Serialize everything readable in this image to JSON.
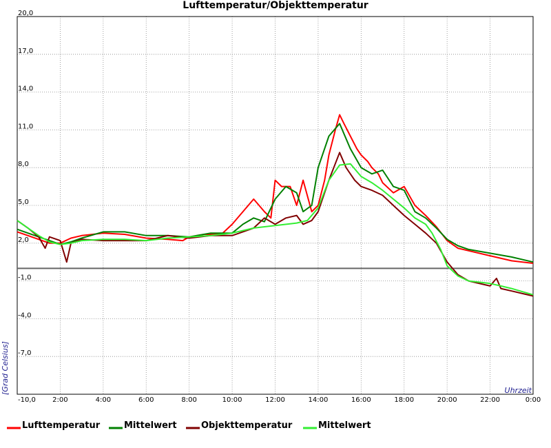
{
  "chart_data": {
    "type": "line",
    "title": "Lufttemperatur/Objekttemperatur",
    "xlabel": "Uhrzeit",
    "ylabel": "[Grad Celsius]",
    "ylim": [
      -10,
      20
    ],
    "xlim": [
      0,
      24
    ],
    "grid": true,
    "legend_position": "bottom",
    "y_ticks": [
      "-10,0",
      "-7,0",
      "-4,0",
      "-1,0",
      "2,0",
      "5,0",
      "8,0",
      "11,0",
      "14,0",
      "17,0",
      "20,0"
    ],
    "x_ticks": [
      "2:00",
      "4:00",
      "6:00",
      "8:00",
      "10:00",
      "12:00",
      "14:00",
      "16:00",
      "18:00",
      "20:00",
      "22:00",
      "0:00"
    ],
    "series": [
      {
        "name": "Lufttemperatur",
        "color": "#ff0000",
        "x": [
          0,
          0.5,
          1.0,
          1.5,
          2.0,
          2.5,
          3.0,
          4.0,
          5.0,
          6.0,
          7.0,
          7.7,
          8.0,
          8.7,
          9.5,
          10.0,
          10.5,
          11.0,
          11.5,
          11.8,
          12.0,
          12.3,
          12.7,
          13.0,
          13.3,
          13.7,
          14.0,
          14.3,
          14.5,
          14.8,
          15.0,
          15.2,
          15.5,
          15.8,
          16.0,
          16.3,
          16.5,
          16.8,
          17.0,
          17.5,
          18.0,
          18.5,
          19.0,
          19.5,
          20.0,
          20.5,
          21.0,
          22.0,
          23.0,
          24.0
        ],
        "y": [
          2.9,
          2.6,
          2.3,
          2.0,
          2.0,
          2.4,
          2.6,
          2.8,
          2.7,
          2.4,
          2.3,
          2.2,
          2.5,
          2.7,
          2.7,
          3.5,
          4.5,
          5.5,
          4.5,
          4.0,
          7.0,
          6.5,
          6.5,
          5.0,
          7.0,
          4.5,
          5.0,
          7.0,
          9.0,
          11.0,
          12.2,
          11.5,
          10.5,
          9.5,
          9.0,
          8.5,
          8.0,
          7.5,
          6.8,
          6.0,
          6.5,
          5.0,
          4.2,
          3.3,
          2.2,
          1.6,
          1.4,
          1.0,
          0.6,
          0.4
        ]
      },
      {
        "name": "Mittelwert",
        "color": "#008000",
        "x": [
          0,
          0.5,
          1.0,
          1.5,
          2.0,
          2.5,
          3.0,
          4.0,
          5.0,
          6.0,
          7.0,
          8.0,
          9.0,
          10.0,
          10.5,
          11.0,
          11.5,
          12.0,
          12.5,
          13.0,
          13.3,
          13.7,
          14.0,
          14.5,
          15.0,
          15.5,
          16.0,
          16.5,
          17.0,
          17.5,
          18.0,
          18.5,
          19.0,
          19.5,
          20.0,
          20.5,
          21.0,
          22.0,
          23.0,
          24.0
        ],
        "y": [
          3.1,
          2.8,
          2.5,
          2.2,
          1.9,
          2.1,
          2.4,
          2.9,
          2.9,
          2.6,
          2.6,
          2.5,
          2.8,
          2.8,
          3.5,
          4.0,
          3.7,
          5.5,
          6.5,
          6.0,
          4.5,
          5.0,
          8.0,
          10.5,
          11.5,
          9.5,
          8.0,
          7.5,
          7.8,
          6.5,
          6.2,
          4.5,
          4.0,
          3.2,
          2.3,
          1.8,
          1.5,
          1.2,
          0.9,
          0.5
        ]
      },
      {
        "name": "Objekttemperatur",
        "color": "#800000",
        "x": [
          0,
          0.5,
          1.0,
          1.3,
          1.5,
          2.0,
          2.3,
          2.5,
          3.0,
          4.0,
          5.0,
          6.0,
          7.0,
          8.0,
          9.0,
          10.0,
          11.0,
          11.5,
          12.0,
          12.5,
          13.0,
          13.3,
          13.7,
          14.0,
          14.5,
          15.0,
          15.3,
          15.7,
          16.0,
          16.5,
          17.0,
          17.5,
          18.0,
          18.5,
          19.0,
          19.5,
          20.0,
          20.5,
          21.0,
          22.0,
          22.3,
          22.5,
          23.0,
          24.0
        ],
        "y": [
          3.8,
          3.2,
          2.5,
          1.6,
          2.5,
          2.2,
          0.5,
          2.0,
          2.3,
          2.2,
          2.2,
          2.2,
          2.6,
          2.4,
          2.6,
          2.6,
          3.2,
          4.0,
          3.5,
          4.0,
          4.2,
          3.5,
          3.8,
          4.5,
          7.0,
          9.2,
          8.0,
          7.0,
          6.5,
          6.2,
          5.8,
          5.0,
          4.2,
          3.5,
          2.8,
          2.0,
          0.5,
          -0.5,
          -1.0,
          -1.4,
          -0.8,
          -1.6,
          -1.8,
          -2.2
        ]
      },
      {
        "name": "Mittelwert",
        "color": "#33ee33",
        "x": [
          0,
          0.5,
          1.0,
          1.5,
          2.0,
          2.5,
          3.0,
          4.0,
          5.0,
          6.0,
          7.0,
          8.0,
          9.0,
          10.0,
          11.0,
          12.0,
          13.0,
          13.5,
          14.0,
          14.5,
          15.0,
          15.5,
          16.0,
          16.5,
          17.0,
          17.5,
          18.0,
          18.5,
          19.0,
          19.3,
          19.7,
          20.0,
          20.5,
          21.0,
          22.0,
          22.5,
          23.0,
          24.0
        ],
        "y": [
          3.8,
          3.2,
          2.6,
          2.1,
          1.9,
          2.0,
          2.2,
          2.3,
          2.3,
          2.2,
          2.4,
          2.5,
          2.6,
          2.8,
          3.2,
          3.4,
          3.6,
          3.8,
          4.8,
          7.0,
          8.2,
          8.3,
          7.3,
          6.8,
          6.2,
          5.5,
          4.8,
          4.0,
          3.5,
          2.8,
          1.5,
          0.2,
          -0.6,
          -1.0,
          -1.2,
          -1.4,
          -1.6,
          -2.1
        ]
      }
    ]
  }
}
